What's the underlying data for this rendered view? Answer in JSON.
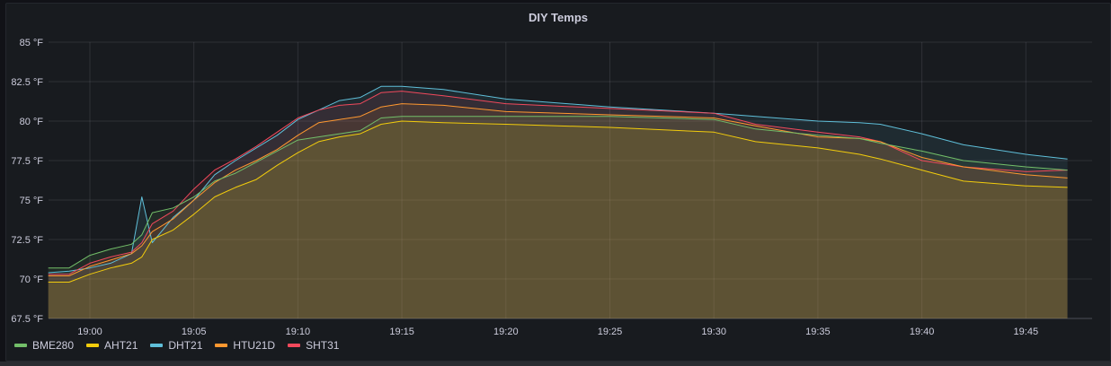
{
  "panel": {
    "title": "DIY Temps"
  },
  "legend": [
    {
      "name": "BME280",
      "color": "#73bf69"
    },
    {
      "name": "AHT21",
      "color": "#f2cc0c"
    },
    {
      "name": "DHT21",
      "color": "#5fbfd9"
    },
    {
      "name": "HTU21D",
      "color": "#ff9830"
    },
    {
      "name": "SHT31",
      "color": "#f2495c"
    }
  ],
  "chart_data": {
    "type": "area",
    "title": "DIY Temps",
    "xlabel": "",
    "ylabel": "",
    "y_unit": "°F",
    "ylim": [
      67.5,
      85
    ],
    "y_ticks": [
      "85 °F",
      "82.5 °F",
      "80 °F",
      "77.5 °F",
      "75 °F",
      "72.5 °F",
      "70 °F",
      "67.5 °F"
    ],
    "x_ticks": [
      "19:00",
      "19:05",
      "19:10",
      "19:15",
      "19:20",
      "19:25",
      "19:30",
      "19:35",
      "19:40",
      "19:45"
    ],
    "grid": true,
    "legend_position": "bottom-left",
    "x": [
      "18:58",
      "18:59",
      "19:00",
      "19:01",
      "19:02",
      "19:02:30",
      "19:03",
      "19:04",
      "19:05",
      "19:06",
      "19:07",
      "19:08",
      "19:09",
      "19:10",
      "19:11",
      "19:12",
      "19:13",
      "19:14",
      "19:15",
      "19:17",
      "19:20",
      "19:25",
      "19:30",
      "19:32",
      "19:35",
      "19:37",
      "19:38",
      "19:40",
      "19:42",
      "19:45",
      "19:47"
    ],
    "series": [
      {
        "name": "BME280",
        "color": "#73bf69",
        "values": [
          70.7,
          70.7,
          71.5,
          71.9,
          72.2,
          72.8,
          74.2,
          74.5,
          75.2,
          76.2,
          76.7,
          77.4,
          78.1,
          78.8,
          79.0,
          79.2,
          79.4,
          80.2,
          80.3,
          80.3,
          80.3,
          80.3,
          80.1,
          79.5,
          79.1,
          78.9,
          78.6,
          78.1,
          77.5,
          77.1,
          76.9
        ]
      },
      {
        "name": "AHT21",
        "color": "#f2cc0c",
        "values": [
          69.8,
          69.8,
          70.3,
          70.7,
          71.0,
          71.4,
          72.5,
          73.1,
          74.1,
          75.2,
          75.8,
          76.3,
          77.2,
          78.0,
          78.7,
          79.0,
          79.2,
          79.8,
          80.0,
          79.9,
          79.8,
          79.6,
          79.3,
          78.7,
          78.3,
          77.9,
          77.6,
          76.9,
          76.2,
          75.9,
          75.8
        ]
      },
      {
        "name": "DHT21",
        "color": "#5fbfd9",
        "values": [
          70.4,
          70.5,
          70.7,
          71.0,
          71.6,
          75.2,
          72.3,
          73.9,
          75.0,
          76.6,
          77.5,
          78.3,
          79.1,
          80.1,
          80.7,
          81.3,
          81.5,
          82.2,
          82.2,
          82.0,
          81.4,
          80.9,
          80.5,
          80.3,
          80.0,
          79.9,
          79.8,
          79.2,
          78.5,
          77.9,
          77.6
        ]
      },
      {
        "name": "HTU21D",
        "color": "#ff9830",
        "values": [
          70.2,
          70.2,
          70.8,
          71.2,
          71.6,
          72.1,
          73.0,
          73.8,
          75.0,
          76.1,
          76.9,
          77.5,
          78.2,
          79.1,
          79.9,
          80.1,
          80.3,
          80.9,
          81.1,
          81.0,
          80.6,
          80.4,
          80.2,
          79.7,
          79.0,
          78.9,
          78.7,
          77.7,
          77.1,
          76.6,
          76.4
        ]
      },
      {
        "name": "SHT31",
        "color": "#f2495c",
        "values": [
          70.3,
          70.3,
          71.0,
          71.4,
          71.7,
          72.3,
          73.5,
          74.3,
          75.7,
          76.9,
          77.6,
          78.4,
          79.3,
          80.2,
          80.7,
          81.0,
          81.1,
          81.8,
          81.9,
          81.6,
          81.1,
          80.8,
          80.5,
          79.8,
          79.3,
          79.0,
          78.7,
          77.5,
          77.1,
          76.8,
          76.9
        ]
      }
    ]
  }
}
